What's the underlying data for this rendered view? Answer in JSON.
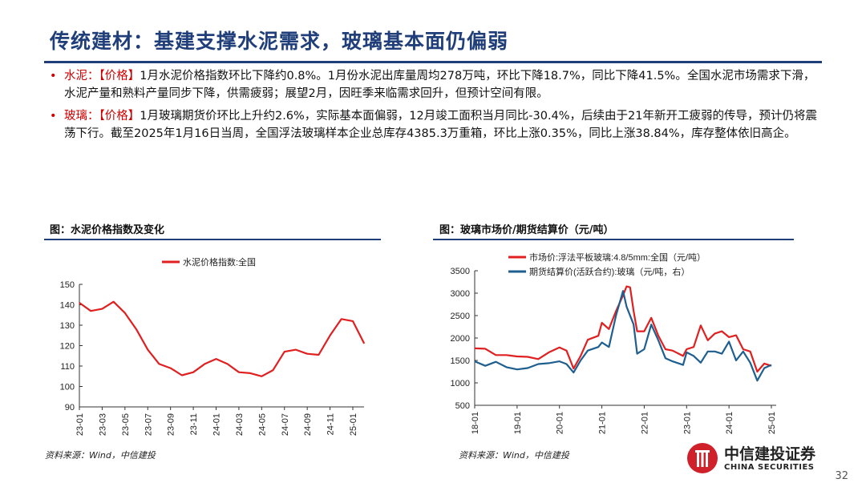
{
  "title": "传统建材：基建支撑水泥需求，玻璃基本面仍偏弱",
  "bullets": [
    {
      "label": "水泥：",
      "tag": "【价格】",
      "text": "1月水泥价格指数环比下降约0.8%。1月份水泥出库量周均278万吨，环比下降18.7%，同比下降41.5%。全国水泥市场需求下滑，水泥产量和熟料产量同步下降，供需疲弱；展望2月，因旺季来临需求回升，但预计空间有限。"
    },
    {
      "label": "玻璃：",
      "tag": "【价格】",
      "text": "1月玻璃期货价环比上升约2.6%，实际基本面偏弱，12月竣工面积当月同比-30.4%，后续由于21年新开工疲弱的传导，预计仍将震荡下行。截至2025年1月16日当周，全国浮法玻璃样本企业总库存4385.3万重箱，环比上涨0.35%，同比上涨38.84%，库存整体依旧高企。"
    }
  ],
  "chart1_header": "图：水泥价格指数及变化",
  "chart2_header": "图：玻璃市场价/期货结算价（元/吨）",
  "source": "资料来源：Wind，中信建投",
  "logo": {
    "name": "中信建投证券",
    "en": "CHINA SECURITIES"
  },
  "page": "32",
  "chart_data": [
    {
      "type": "line",
      "ylim": [
        90,
        150
      ],
      "yticks": [
        90,
        100,
        110,
        120,
        130,
        140,
        150
      ],
      "xticks": [
        "23-01",
        "23-03",
        "23-05",
        "23-07",
        "23-09",
        "23-11",
        "24-01",
        "24-03",
        "24-05",
        "24-07",
        "24-09",
        "24-11",
        "25-01"
      ],
      "series": [
        {
          "name": "水泥价格指数:全国",
          "color": "#e02020",
          "x": [
            "23-01",
            "23-02",
            "23-03",
            "23-04",
            "23-05",
            "23-06",
            "23-07",
            "23-08",
            "23-09",
            "23-10",
            "23-11",
            "23-12",
            "24-01",
            "24-02",
            "24-03",
            "24-04",
            "24-05",
            "24-06",
            "24-07",
            "24-08",
            "24-09",
            "24-10",
            "24-11",
            "24-12",
            "25-01",
            "25-02"
          ],
          "values": [
            141,
            137,
            138,
            141.5,
            136,
            128,
            118,
            111,
            109,
            105.5,
            107,
            111,
            113.5,
            111,
            107,
            106.5,
            105,
            108,
            117,
            118,
            116,
            115.5,
            125,
            133,
            132,
            121
          ]
        }
      ]
    },
    {
      "type": "line",
      "ylim": [
        500,
        3500
      ],
      "yticks": [
        500,
        1000,
        1500,
        2000,
        2500,
        3000,
        3500
      ],
      "xticks": [
        "18-01",
        "19-01",
        "20-01",
        "21-01",
        "22-01",
        "23-01",
        "24-01",
        "25-01"
      ],
      "series": [
        {
          "name": "市场价:浮法平板玻璃:4.8/5mm:全国（元/吨）",
          "color": "#e02020",
          "x": [
            "18-01",
            "18-04",
            "18-07",
            "18-10",
            "19-01",
            "19-04",
            "19-07",
            "19-10",
            "20-01",
            "20-03",
            "20-05",
            "20-07",
            "20-09",
            "20-12",
            "21-01",
            "21-03",
            "21-05",
            "21-07",
            "21-08",
            "21-09",
            "21-10",
            "21-11",
            "22-01",
            "22-03",
            "22-05",
            "22-07",
            "22-09",
            "22-12",
            "23-01",
            "23-03",
            "23-05",
            "23-07",
            "23-09",
            "23-11",
            "24-01",
            "24-03",
            "24-05",
            "24-07",
            "24-09",
            "24-11",
            "25-01"
          ],
          "values": [
            1770,
            1760,
            1620,
            1620,
            1590,
            1580,
            1530,
            1680,
            1790,
            1720,
            1320,
            1600,
            1960,
            2050,
            2340,
            2200,
            2600,
            2950,
            3150,
            3130,
            2600,
            2150,
            2150,
            2450,
            2050,
            1750,
            1720,
            1600,
            1750,
            1800,
            2280,
            1950,
            2100,
            2150,
            2020,
            2060,
            1750,
            1700,
            1250,
            1430,
            1380
          ]
        },
        {
          "name": "期货结算价(活跃合约):玻璃（元/吨，右）",
          "color": "#1f5f8f",
          "x": [
            "18-01",
            "18-04",
            "18-07",
            "18-10",
            "19-01",
            "19-04",
            "19-07",
            "19-10",
            "20-01",
            "20-03",
            "20-05",
            "20-07",
            "20-09",
            "20-12",
            "21-01",
            "21-03",
            "21-05",
            "21-07",
            "21-08",
            "21-10",
            "21-11",
            "22-01",
            "22-03",
            "22-05",
            "22-07",
            "22-09",
            "22-12",
            "23-01",
            "23-03",
            "23-05",
            "23-07",
            "23-09",
            "23-11",
            "24-01",
            "24-03",
            "24-05",
            "24-07",
            "24-09",
            "24-11",
            "25-01"
          ],
          "values": [
            1480,
            1380,
            1470,
            1350,
            1300,
            1330,
            1420,
            1440,
            1480,
            1420,
            1230,
            1500,
            1720,
            1800,
            1900,
            1800,
            2500,
            3050,
            2700,
            2300,
            1650,
            1750,
            2300,
            1950,
            1550,
            1480,
            1400,
            1680,
            1600,
            1450,
            1700,
            1700,
            1650,
            1920,
            1500,
            1700,
            1450,
            1050,
            1330,
            1400
          ]
        }
      ]
    }
  ]
}
